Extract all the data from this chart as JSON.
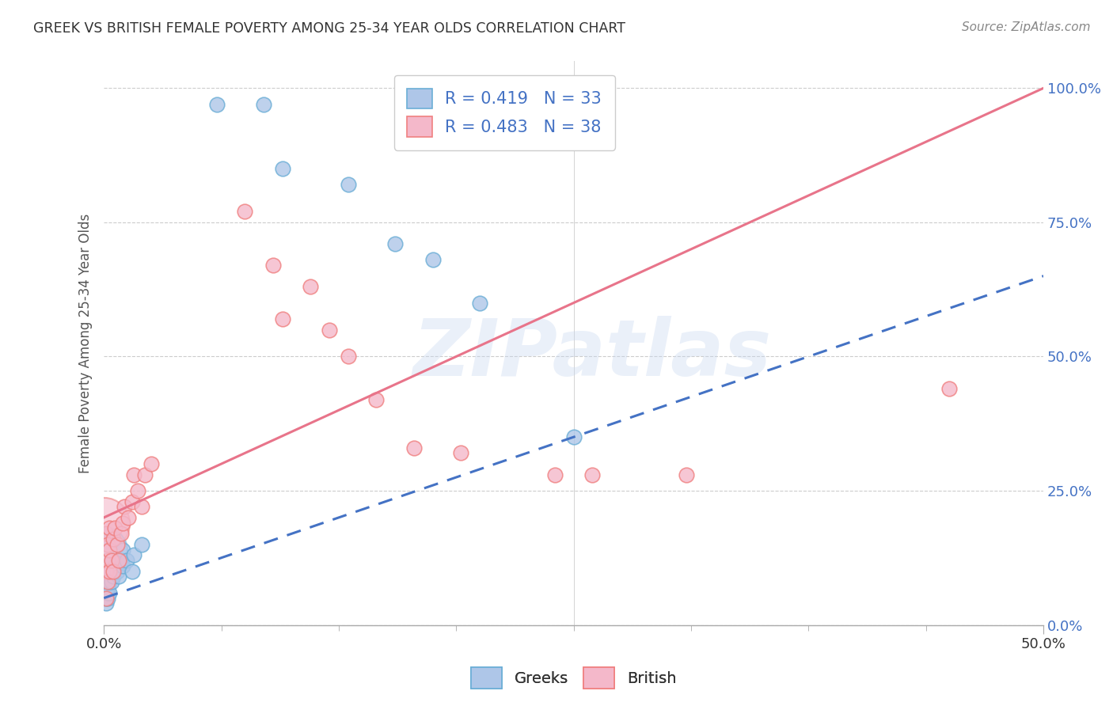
{
  "title": "GREEK VS BRITISH FEMALE POVERTY AMONG 25-34 YEAR OLDS CORRELATION CHART",
  "source": "Source: ZipAtlas.com",
  "ylabel": "Female Poverty Among 25-34 Year Olds",
  "xlim": [
    0.0,
    0.5
  ],
  "ylim": [
    0.0,
    1.05
  ],
  "xtick_major": [
    0.0,
    0.5
  ],
  "xtick_major_labels": [
    "0.0%",
    "50.0%"
  ],
  "xtick_minor": [
    0.0625,
    0.125,
    0.1875,
    0.25,
    0.3125,
    0.375,
    0.4375
  ],
  "ytick_vals": [
    0.0,
    0.25,
    0.5,
    0.75,
    1.0
  ],
  "ytick_labels": [
    "0.0%",
    "25.0%",
    "50.0%",
    "75.0%",
    "100.0%"
  ],
  "greek_R": 0.419,
  "greek_N": 33,
  "british_R": 0.483,
  "british_N": 38,
  "greek_color": "#aec6e8",
  "british_color": "#f4b8ca",
  "greek_edge_color": "#6baed6",
  "british_edge_color": "#f08080",
  "trend_greek_color": "#4472c4",
  "trend_british_color": "#e8748a",
  "legend_greek_label": "Greeks",
  "legend_british_label": "British",
  "watermark": "ZIPatlas",
  "background_color": "#ffffff",
  "greek_x": [
    0.001,
    0.001,
    0.001,
    0.002,
    0.002,
    0.002,
    0.002,
    0.002,
    0.003,
    0.003,
    0.003,
    0.004,
    0.004,
    0.005,
    0.005,
    0.006,
    0.007,
    0.008,
    0.009,
    0.01,
    0.01,
    0.012,
    0.015,
    0.016,
    0.02,
    0.06,
    0.085,
    0.095,
    0.13,
    0.155,
    0.175,
    0.2,
    0.25
  ],
  "greek_y": [
    0.04,
    0.05,
    0.06,
    0.05,
    0.06,
    0.07,
    0.08,
    0.09,
    0.06,
    0.08,
    0.1,
    0.08,
    0.12,
    0.09,
    0.1,
    0.11,
    0.1,
    0.09,
    0.12,
    0.11,
    0.14,
    0.12,
    0.1,
    0.13,
    0.15,
    0.97,
    0.97,
    0.85,
    0.82,
    0.71,
    0.68,
    0.6,
    0.35
  ],
  "british_x": [
    0.001,
    0.001,
    0.001,
    0.002,
    0.002,
    0.002,
    0.003,
    0.003,
    0.003,
    0.004,
    0.005,
    0.005,
    0.006,
    0.007,
    0.008,
    0.009,
    0.01,
    0.011,
    0.013,
    0.015,
    0.016,
    0.018,
    0.02,
    0.022,
    0.025,
    0.075,
    0.09,
    0.095,
    0.11,
    0.12,
    0.13,
    0.145,
    0.165,
    0.19,
    0.24,
    0.26,
    0.31,
    0.45
  ],
  "british_y": [
    0.05,
    0.1,
    0.17,
    0.08,
    0.12,
    0.15,
    0.1,
    0.14,
    0.18,
    0.12,
    0.1,
    0.16,
    0.18,
    0.15,
    0.12,
    0.17,
    0.19,
    0.22,
    0.2,
    0.23,
    0.28,
    0.25,
    0.22,
    0.28,
    0.3,
    0.77,
    0.67,
    0.57,
    0.63,
    0.55,
    0.5,
    0.42,
    0.33,
    0.32,
    0.28,
    0.28,
    0.28,
    0.44
  ],
  "greek_large_x": [
    0.0
  ],
  "greek_large_y": [
    0.19
  ]
}
